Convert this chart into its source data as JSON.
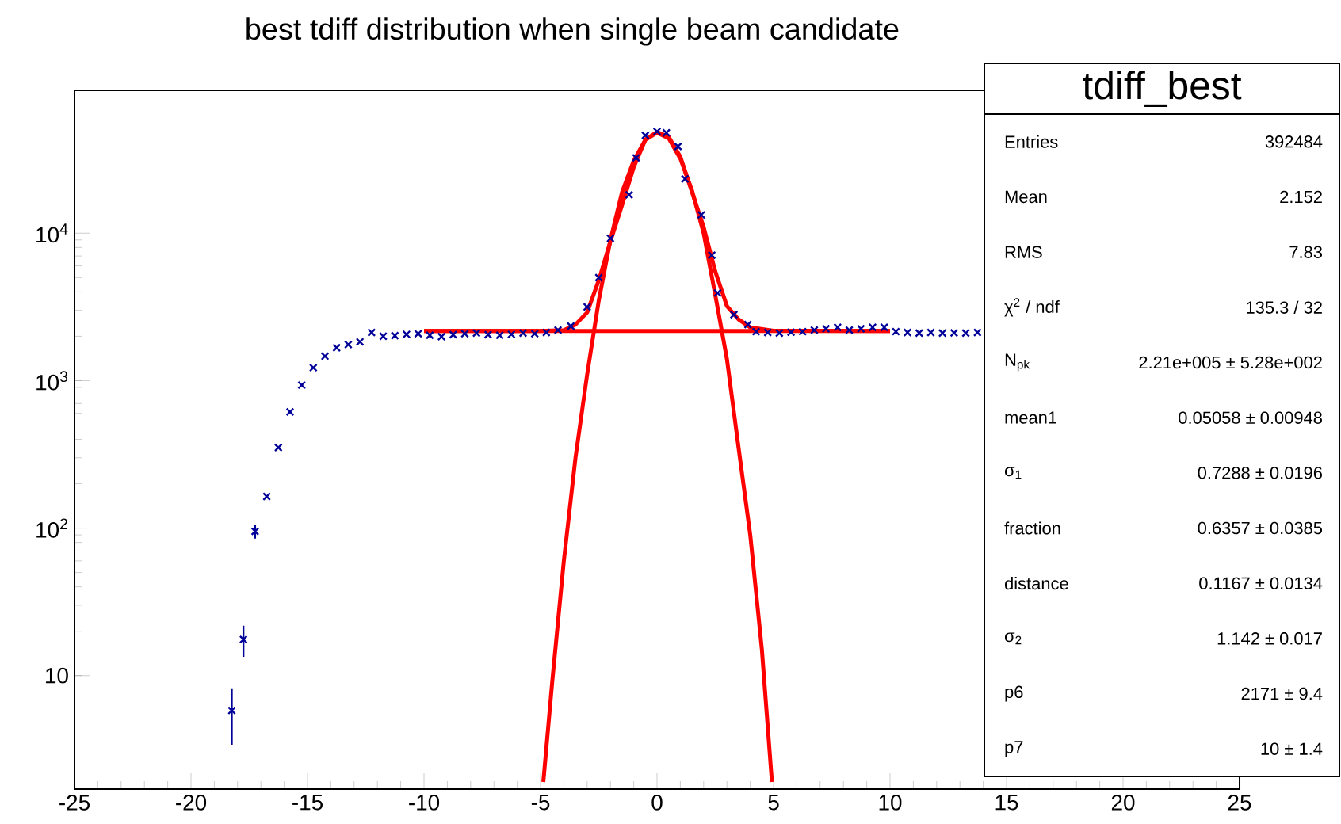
{
  "chart_data": {
    "type": "scatter",
    "title": "best tdiff distribution when single beam candidate",
    "xlim": [
      -25,
      25
    ],
    "xticks": [
      -25,
      -20,
      -15,
      -10,
      -5,
      0,
      5,
      10,
      15,
      20,
      25
    ],
    "ylim": [
      1.7,
      93000
    ],
    "log": true,
    "yticks": [
      {
        "value": 10,
        "label": "10"
      },
      {
        "value": 100,
        "label": "10$^{2}$"
      },
      {
        "value": 1000,
        "label": "10$^{3}$"
      },
      {
        "value": 10000,
        "label": "10$^{4}$"
      }
    ],
    "series": [
      {
        "color": "#000099",
        "marker": "cross",
        "x": [
          -18.25,
          -17.75,
          -17.25,
          -16.75,
          -16.25,
          -15.75,
          -15.25,
          -14.75,
          -14.25,
          -13.75,
          -13.25,
          -12.75,
          -12.25,
          -11.75,
          -11.25,
          -10.75,
          -10.25,
          -9.75,
          -9.25,
          -8.75,
          -8.25,
          -7.75,
          -7.25,
          -6.75,
          -6.25,
          -5.75,
          -5.25,
          -4.75,
          -4.25,
          -3.7,
          -3.0,
          -2.5,
          -2.0,
          -1.2,
          -0.9,
          -0.5,
          0.0,
          0.4,
          0.9,
          1.2,
          1.9,
          2.35,
          2.6,
          3.3,
          3.9,
          4.25,
          4.75,
          5.25,
          5.75,
          6.25,
          6.75,
          7.25,
          7.75,
          8.25,
          8.75,
          9.25,
          9.75,
          10.25,
          10.75,
          11.25,
          11.75,
          12.25,
          12.75,
          13.25,
          13.75
        ],
        "values": [
          5.8,
          17.6,
          95,
          164,
          352,
          614,
          933,
          1225,
          1466,
          1671,
          1757,
          1832,
          2120,
          2000,
          2020,
          2060,
          2080,
          2030,
          1990,
          2050,
          2080,
          2100,
          2050,
          2030,
          2060,
          2100,
          2080,
          2120,
          2200,
          2340,
          3160,
          5000,
          9230,
          18200,
          32400,
          46000,
          48900,
          47900,
          38700,
          23300,
          13300,
          7080,
          3930,
          2800,
          2400,
          2150,
          2120,
          2100,
          2130,
          2150,
          2200,
          2250,
          2300,
          2200,
          2250,
          2300,
          2300,
          2150,
          2120,
          2100,
          2120,
          2100,
          2110,
          2100,
          2120
        ],
        "errors": [
          2.4,
          4.2,
          10,
          null,
          null,
          null,
          null,
          null,
          null,
          null,
          null,
          null,
          null,
          null,
          null,
          null,
          null,
          null,
          null,
          null,
          null,
          null,
          null,
          null,
          null,
          null,
          null,
          null,
          null,
          null,
          null,
          null,
          null,
          null,
          null,
          null,
          null,
          null,
          null,
          null,
          null,
          null,
          null,
          null,
          null,
          null,
          null,
          null,
          null,
          null,
          null,
          null,
          null,
          null,
          null,
          null,
          null,
          null,
          null,
          null,
          null,
          null,
          null,
          null,
          null
        ]
      },
      {
        "type": "line",
        "color": "#ff0000",
        "x": [
          -10,
          -5,
          -4,
          -3.5,
          -3,
          -2.5,
          -2,
          -1.5,
          -1,
          -0.5,
          0,
          0.5,
          1,
          1.5,
          2,
          2.5,
          3,
          3.5,
          4,
          5,
          10
        ],
        "values": [
          2171,
          2171,
          2200,
          2400,
          2900,
          4800,
          8800,
          15500,
          28000,
          43000,
          48500,
          45000,
          33000,
          19000,
          11000,
          5500,
          3200,
          2600,
          2300,
          2180,
          2171
        ]
      },
      {
        "type": "line",
        "color": "#ff0000",
        "x": [
          -4.88,
          -4.5,
          -4,
          -3.5,
          -3,
          -2.5,
          -2,
          -1.5,
          -1,
          -0.5,
          0,
          0.5,
          1,
          1.5,
          2,
          2.5,
          3,
          3.5,
          4,
          4.5,
          4.93
        ],
        "values": [
          1.9,
          9,
          60,
          300,
          1100,
          3500,
          9000,
          19000,
          31000,
          43000,
          48000,
          44000,
          32000,
          19500,
          10000,
          3800,
          1400,
          350,
          90,
          15,
          1.9
        ]
      },
      {
        "type": "line",
        "color": "#ff0000",
        "x": [
          -10,
          10
        ],
        "values": [
          2171,
          2171
        ]
      }
    ],
    "annotations": [
      "tdiff_best",
      "Entries",
      "392484",
      "Mean",
      "2.152",
      "RMS",
      "7.83",
      "χ$^{2}$ / ndf",
      "135.3 / 32",
      "N$_{pk}$",
      "2.21e+005 ± 5.28e+002",
      "mean1",
      "0.05058 ± 0.00948",
      "σ$_{1}$",
      "0.7288 ± 0.0196",
      "fraction",
      "0.6357 ± 0.0385",
      "distance",
      "0.1167 ± 0.0134",
      "σ$_{2}$",
      "1.142 ± 0.017",
      "p6",
      "2171 ± 9.4",
      "p7",
      "10 ± 1.4"
    ]
  }
}
